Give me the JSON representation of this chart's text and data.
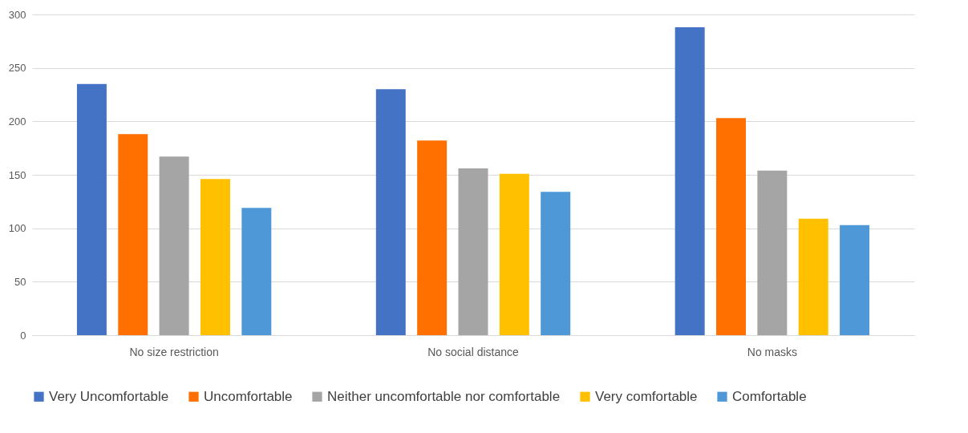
{
  "chart_data": {
    "type": "bar",
    "categories": [
      "No size restriction",
      "No social distance",
      "No masks"
    ],
    "series": [
      {
        "name": "Very Uncomfortable",
        "color": "#4472c4",
        "values": [
          235,
          230,
          288
        ]
      },
      {
        "name": "Uncomfortable",
        "color": "#ff7000",
        "values": [
          188,
          182,
          203
        ]
      },
      {
        "name": "Neither uncomfortable nor comfortable",
        "color": "#a5a5a5",
        "values": [
          167,
          156,
          154
        ]
      },
      {
        "name": "Very comfortable",
        "color": "#ffc000",
        "values": [
          146,
          151,
          109
        ]
      },
      {
        "name": "Comfortable",
        "color": "#4e98d8",
        "values": [
          119,
          134,
          103
        ]
      }
    ],
    "ylim": [
      0,
      300
    ],
    "yticks": [
      0,
      50,
      100,
      150,
      200,
      250,
      300
    ],
    "grid": "y",
    "legend": "bottom"
  }
}
